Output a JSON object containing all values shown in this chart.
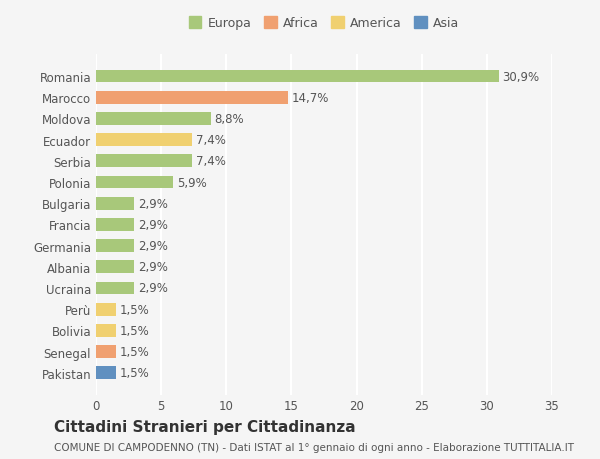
{
  "categories": [
    "Romania",
    "Marocco",
    "Moldova",
    "Ecuador",
    "Serbia",
    "Polonia",
    "Bulgaria",
    "Francia",
    "Germania",
    "Albania",
    "Ucraina",
    "Perù",
    "Bolivia",
    "Senegal",
    "Pakistan"
  ],
  "values": [
    30.9,
    14.7,
    8.8,
    7.4,
    7.4,
    5.9,
    2.9,
    2.9,
    2.9,
    2.9,
    2.9,
    1.5,
    1.5,
    1.5,
    1.5
  ],
  "labels": [
    "30,9%",
    "14,7%",
    "8,8%",
    "7,4%",
    "7,4%",
    "5,9%",
    "2,9%",
    "2,9%",
    "2,9%",
    "2,9%",
    "2,9%",
    "1,5%",
    "1,5%",
    "1,5%",
    "1,5%"
  ],
  "colors": [
    "#a8c87a",
    "#f0a070",
    "#a8c87a",
    "#f0d070",
    "#a8c87a",
    "#a8c87a",
    "#a8c87a",
    "#a8c87a",
    "#a8c87a",
    "#a8c87a",
    "#a8c87a",
    "#f0d070",
    "#f0d070",
    "#f0a070",
    "#6090c0"
  ],
  "legend_labels": [
    "Europa",
    "Africa",
    "America",
    "Asia"
  ],
  "legend_colors": [
    "#a8c87a",
    "#f0a070",
    "#f0d070",
    "#6090c0"
  ],
  "title": "Cittadini Stranieri per Cittadinanza",
  "subtitle": "COMUNE DI CAMPODENNO (TN) - Dati ISTAT al 1° gennaio di ogni anno - Elaborazione TUTTITALIA.IT",
  "xlim": [
    0,
    35
  ],
  "xticks": [
    0,
    5,
    10,
    15,
    20,
    25,
    30,
    35
  ],
  "background_color": "#f5f5f5",
  "grid_color": "#ffffff",
  "bar_height": 0.6,
  "label_fontsize": 8.5,
  "tick_fontsize": 8.5,
  "title_fontsize": 11,
  "subtitle_fontsize": 7.5
}
